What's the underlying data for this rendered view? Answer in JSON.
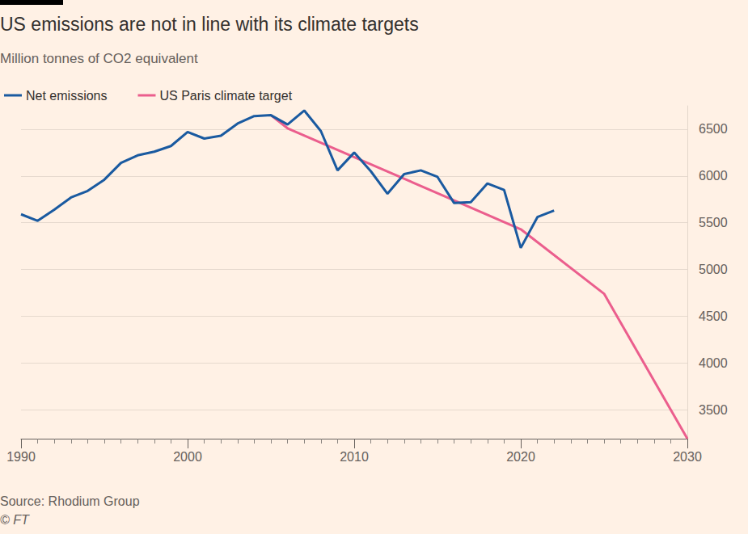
{
  "chart_data": {
    "type": "line",
    "title": "US emissions are not in line with its climate targets",
    "subtitle": "Million tonnes of CO2 equivalent",
    "source": "Source: Rhodium Group",
    "credit": "© FT",
    "legend": "top-left",
    "grid": true,
    "xlim": [
      1990,
      2030
    ],
    "xticks": [
      1990,
      2000,
      2010,
      2020,
      2030
    ],
    "ylim": [
      3190,
      6750
    ],
    "yticks": [
      3500,
      4000,
      4500,
      5000,
      5500,
      6000,
      6500
    ],
    "series": [
      {
        "name": "Net emissions",
        "color": "#1a5aa0",
        "x": [
          1990,
          1991,
          1992,
          1993,
          1994,
          1995,
          1996,
          1997,
          1998,
          1999,
          2000,
          2001,
          2002,
          2003,
          2004,
          2005,
          2006,
          2007,
          2008,
          2009,
          2010,
          2011,
          2012,
          2013,
          2014,
          2015,
          2016,
          2017,
          2018,
          2019,
          2020,
          2021,
          2022
        ],
        "values": [
          5590,
          5520,
          5640,
          5770,
          5840,
          5960,
          6140,
          6220,
          6260,
          6320,
          6470,
          6400,
          6430,
          6560,
          6640,
          6650,
          6550,
          6700,
          6480,
          6060,
          6250,
          6050,
          5810,
          6020,
          6060,
          5990,
          5710,
          5720,
          5920,
          5850,
          5230,
          5560,
          5630
        ]
      },
      {
        "name": "US Paris climate target",
        "color": "#eb5e8d",
        "x": [
          2005,
          2006,
          2020,
          2025,
          2030
        ],
        "values": [
          6650,
          6510,
          5430,
          4740,
          3190
        ]
      }
    ]
  }
}
